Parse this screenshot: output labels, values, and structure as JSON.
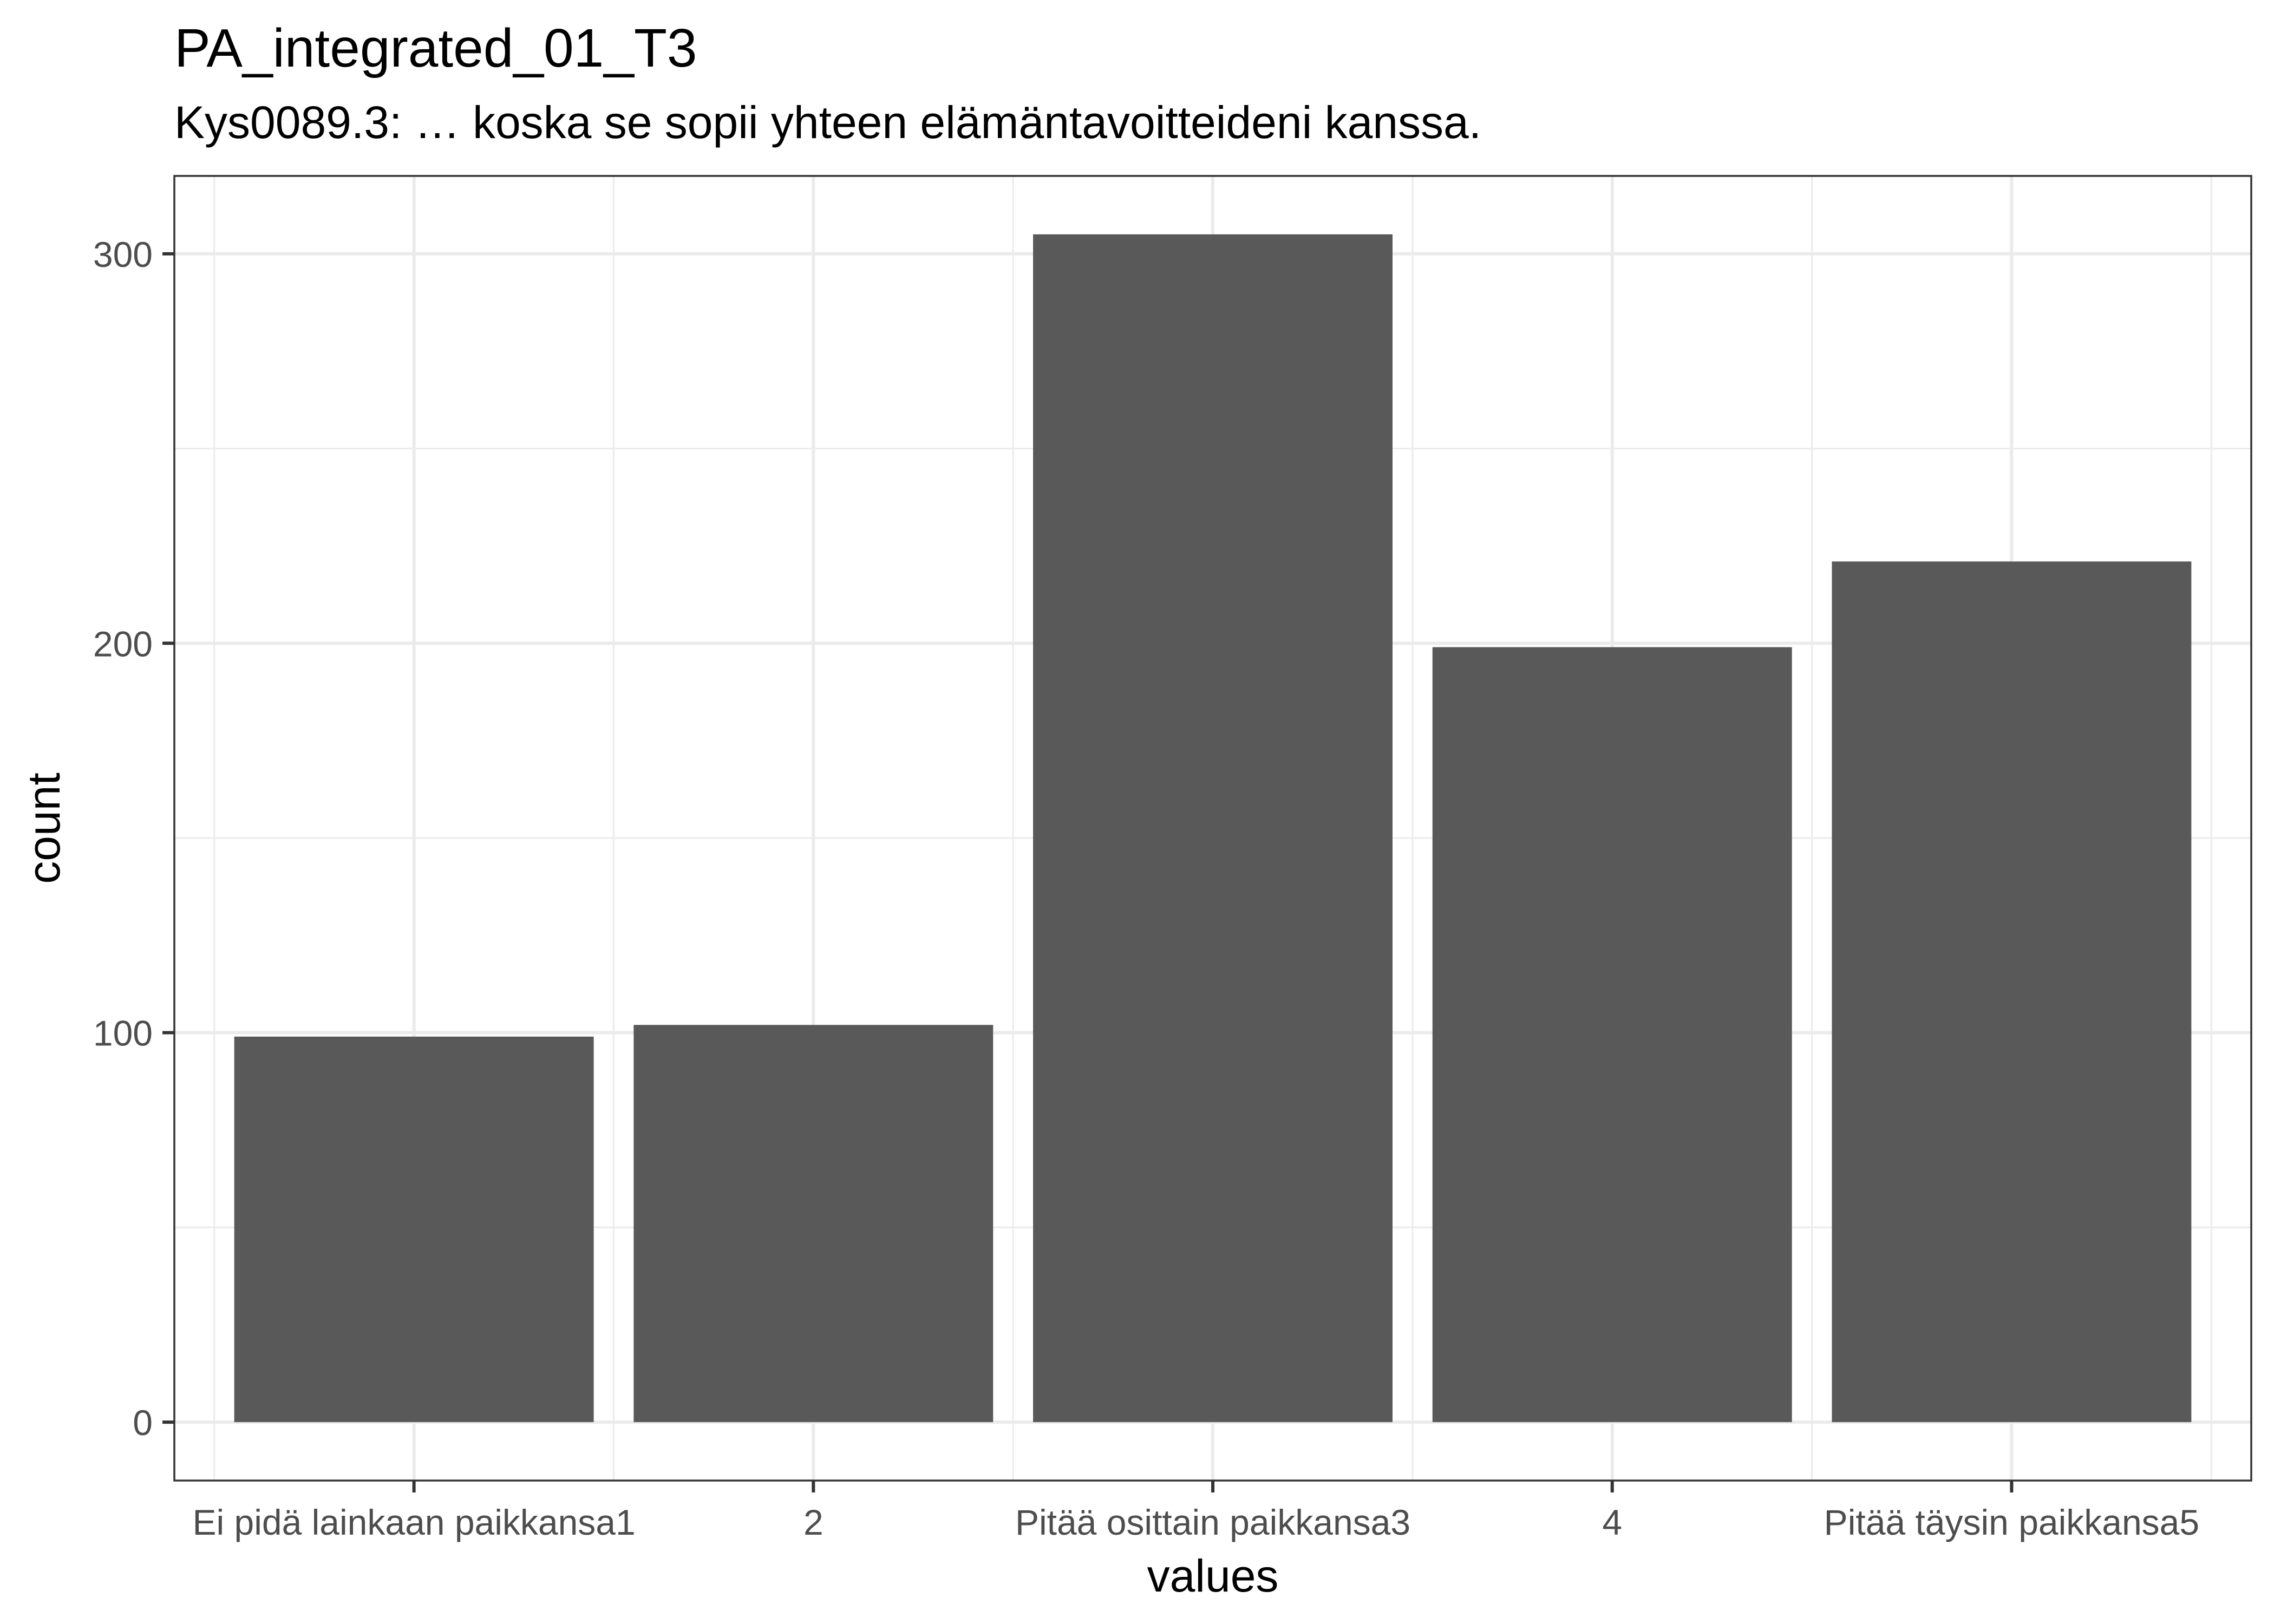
{
  "chart_data": {
    "type": "bar",
    "title": "PA_integrated_01_T3",
    "subtitle": "Kys0089.3: … koska se sopii yhteen elämäntavoitteideni kanssa.",
    "xlabel": "values",
    "ylabel": "count",
    "categories": [
      "Ei pidä lainkaan paikkansa1",
      "2",
      "Pitää osittain paikkansa3",
      "4",
      "Pitää täysin paikkansa5"
    ],
    "values": [
      99,
      102,
      305,
      199,
      221
    ],
    "ylim": [
      -15,
      320
    ],
    "yticks": [
      0,
      100,
      200,
      300
    ],
    "grid": true,
    "bar_color": "#595959",
    "grid_color": "#ebebeb",
    "panel_border_color": "#333333",
    "tick_label_color": "#4d4d4d"
  }
}
